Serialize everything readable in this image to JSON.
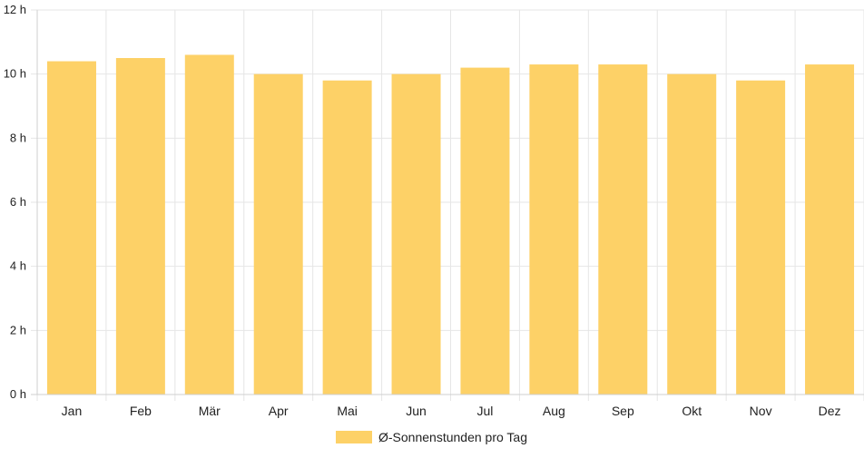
{
  "chart_data": {
    "type": "bar",
    "categories": [
      "Jan",
      "Feb",
      "Mär",
      "Apr",
      "Mai",
      "Jun",
      "Jul",
      "Aug",
      "Sep",
      "Okt",
      "Nov",
      "Dez"
    ],
    "series": [
      {
        "name": "Ø-Sonnenstunden pro Tag",
        "values": [
          10.4,
          10.5,
          10.6,
          10.0,
          9.8,
          10.0,
          10.2,
          10.3,
          10.3,
          10.0,
          9.8,
          10.3
        ],
        "color": "#fdd167"
      }
    ],
    "ylim": [
      0,
      12
    ],
    "yticks": [
      "0 h",
      "2 h",
      "4 h",
      "6 h",
      "8 h",
      "10 h",
      "12 h"
    ],
    "grid": true,
    "legend_position": "bottom"
  }
}
